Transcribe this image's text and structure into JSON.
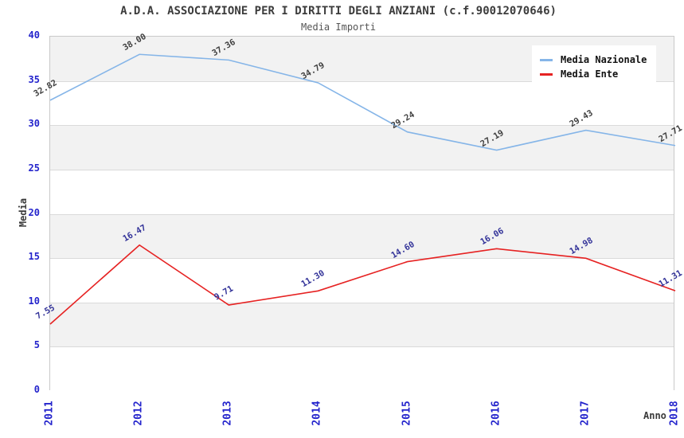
{
  "page": {
    "title": "A.D.A. ASSOCIAZIONE PER I DIRITTI DEGLI ANZIANI (c.f.90012070646)",
    "subtitle": "Media Importi"
  },
  "chart_data": {
    "type": "line",
    "title": "A.D.A. ASSOCIAZIONE PER I DIRITTI DEGLI ANZIANI (c.f.90012070646)",
    "subtitle": "Media Importi",
    "xlabel": "Anno",
    "ylabel": "Media",
    "categories": [
      "2011",
      "2012",
      "2013",
      "2014",
      "2015",
      "2016",
      "2017",
      "2018"
    ],
    "series": [
      {
        "name": "Media Nazionale",
        "color": "#85b5e8",
        "label_color": "#404040",
        "values": [
          32.82,
          38.0,
          37.36,
          34.79,
          29.24,
          27.19,
          29.43,
          27.71
        ]
      },
      {
        "name": "Media Ente",
        "color": "#e62222",
        "label_color": "#333399",
        "values": [
          7.55,
          16.47,
          9.71,
          11.3,
          14.6,
          16.06,
          14.98,
          11.31
        ]
      }
    ],
    "ylim": [
      0,
      40
    ],
    "yticks": [
      0,
      5,
      10,
      15,
      20,
      25,
      30,
      35,
      40
    ],
    "grid": true,
    "legend_position": "top-right",
    "band_colors": [
      "#ffffff",
      "#f2f2f2"
    ],
    "tick_color": "#2424cc"
  }
}
